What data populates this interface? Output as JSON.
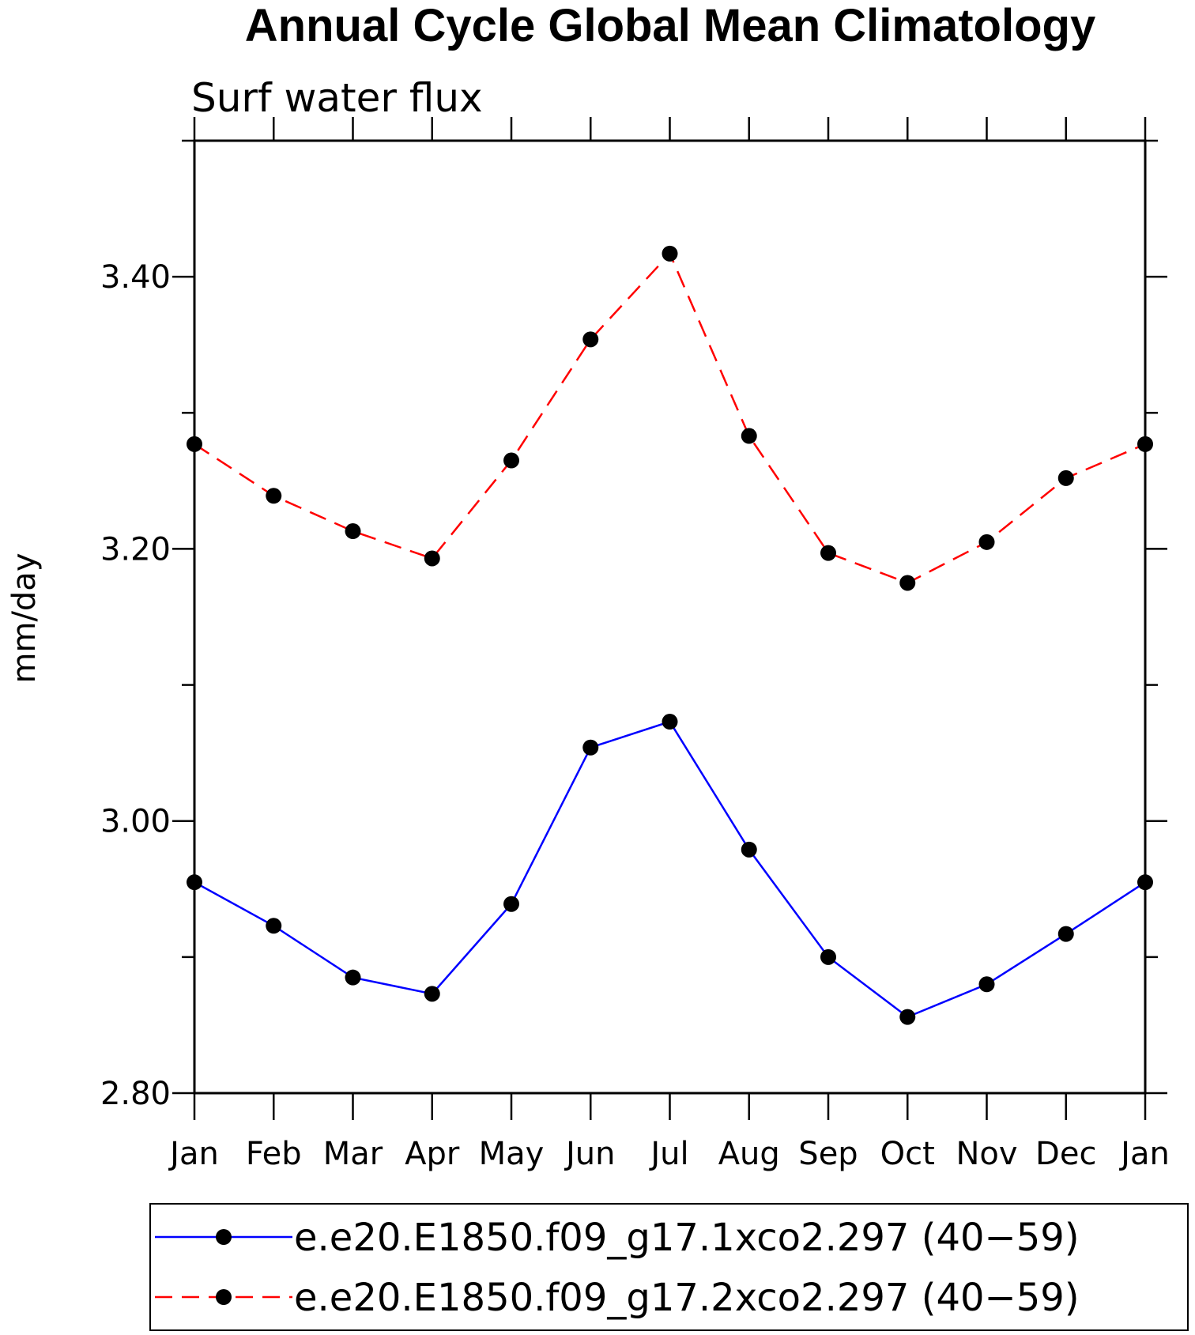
{
  "chart_data": {
    "type": "line",
    "title": "Annual Cycle Global Mean Climatology",
    "subtitle": "Surf water flux",
    "ylabel": "mm/day",
    "xlabel": "",
    "categories": [
      "Jan",
      "Feb",
      "Mar",
      "Apr",
      "May",
      "Jun",
      "Jul",
      "Aug",
      "Sep",
      "Oct",
      "Nov",
      "Dec",
      "Jan"
    ],
    "ylim": [
      2.8,
      3.5
    ],
    "yticks": [
      "2.80",
      "3.00",
      "3.20",
      "3.40"
    ],
    "series": [
      {
        "name": "e.e20.E1850.f09_g17.1xco2.297 (40−59)",
        "color": "#0000ff",
        "dash": "solid",
        "marker": "filled-circle",
        "values": [
          2.955,
          2.923,
          2.885,
          2.873,
          2.939,
          3.054,
          3.073,
          2.979,
          2.9,
          2.856,
          2.88,
          2.917,
          2.955
        ]
      },
      {
        "name": "e.e20.E1850.f09_g17.2xco2.297 (40−59)",
        "color": "#ff0000",
        "dash": "dashed",
        "marker": "filled-circle",
        "values": [
          3.277,
          3.239,
          3.213,
          3.193,
          3.265,
          3.354,
          3.417,
          3.283,
          3.197,
          3.175,
          3.205,
          3.252,
          3.277
        ]
      }
    ],
    "grid": false,
    "legend": "bottom"
  }
}
